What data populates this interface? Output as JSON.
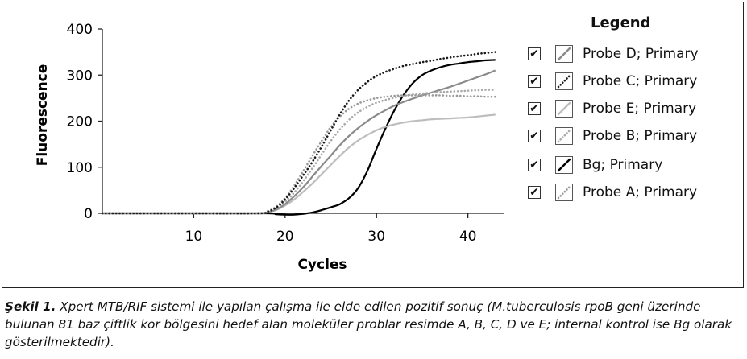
{
  "caption": {
    "label": "Şekil 1.",
    "text": " Xpert MTB/RIF sistemi ile yapılan çalışma ile elde edilen pozitif sonuç (M.tuberculosis rpoB geni üzerinde bulunan 81 baz çiftlik kor bölgesini hedef alan moleküler problar resimde A, B, C, D ve E; internal kontrol ise Bg olarak gösterilmektedir)."
  },
  "legend": {
    "title": "Legend",
    "checkbox_glyph": "✔"
  },
  "chart_data": {
    "type": "line",
    "title": "",
    "xlabel": "Cycles",
    "ylabel": "Fluorescence",
    "xlim": [
      0,
      44
    ],
    "ylim": [
      0,
      400
    ],
    "xticks": [
      10,
      20,
      30,
      40
    ],
    "yticks": [
      0,
      100,
      200,
      300,
      400
    ],
    "grid": false,
    "legend_position": "right",
    "series": [
      {
        "name": "Probe D; Primary",
        "color": "#8a8a8a",
        "dash": "",
        "x": [
          0,
          10,
          17,
          18,
          19,
          20,
          21,
          22,
          23,
          24,
          25,
          26,
          27,
          28,
          29,
          30,
          31,
          32,
          33,
          34,
          35,
          36,
          37,
          38,
          39,
          40,
          41,
          42,
          43
        ],
        "y": [
          0,
          0,
          0,
          2,
          8,
          20,
          37,
          57,
          80,
          103,
          125,
          148,
          168,
          185,
          200,
          213,
          224,
          234,
          242,
          249,
          256,
          262,
          268,
          274,
          281,
          288,
          295,
          302,
          310
        ]
      },
      {
        "name": "Probe C; Primary",
        "color": "#1a1a1a",
        "dash": "dotted",
        "x": [
          0,
          10,
          17,
          18,
          19,
          20,
          21,
          22,
          23,
          24,
          25,
          26,
          27,
          28,
          29,
          30,
          31,
          32,
          33,
          34,
          35,
          36,
          37,
          38,
          39,
          40,
          41,
          42,
          43
        ],
        "y": [
          0,
          0,
          0,
          3,
          12,
          30,
          55,
          83,
          112,
          145,
          180,
          215,
          245,
          268,
          285,
          298,
          307,
          314,
          320,
          324,
          328,
          331,
          335,
          338,
          341,
          343,
          346,
          348,
          350
        ]
      },
      {
        "name": "Probe E; Primary",
        "color": "#bdbdbd",
        "dash": "",
        "x": [
          0,
          10,
          17,
          18,
          19,
          20,
          21,
          22,
          23,
          24,
          25,
          26,
          27,
          28,
          29,
          30,
          31,
          32,
          33,
          34,
          35,
          36,
          37,
          38,
          39,
          40,
          41,
          42,
          43
        ],
        "y": [
          0,
          0,
          0,
          2,
          7,
          17,
          30,
          47,
          65,
          85,
          105,
          125,
          143,
          158,
          170,
          180,
          188,
          193,
          197,
          200,
          202,
          204,
          205,
          206,
          207,
          208,
          210,
          212,
          214
        ]
      },
      {
        "name": "Probe B; Primary",
        "color": "#a9a9a9",
        "dash": "dotted",
        "x": [
          0,
          10,
          17,
          18,
          19,
          20,
          21,
          22,
          23,
          24,
          25,
          26,
          27,
          28,
          29,
          30,
          31,
          32,
          33,
          34,
          35,
          36,
          37,
          38,
          39,
          40,
          41,
          42,
          43
        ],
        "y": [
          0,
          0,
          0,
          3,
          10,
          25,
          45,
          70,
          98,
          128,
          157,
          182,
          203,
          219,
          231,
          240,
          246,
          251,
          255,
          258,
          260,
          262,
          263,
          264,
          265,
          266,
          267,
          268,
          268
        ]
      },
      {
        "name": "Bg; Primary",
        "color": "#000000",
        "dash": "",
        "x": [
          0,
          10,
          18,
          19,
          20,
          21,
          22,
          23,
          24,
          25,
          26,
          27,
          28,
          29,
          30,
          31,
          32,
          33,
          34,
          35,
          36,
          37,
          38,
          39,
          40,
          41,
          42,
          43
        ],
        "y": [
          0,
          0,
          0,
          -2,
          -3,
          -3,
          -1,
          2,
          7,
          13,
          20,
          33,
          55,
          92,
          140,
          185,
          225,
          258,
          283,
          300,
          310,
          317,
          322,
          325,
          328,
          330,
          332,
          333
        ]
      },
      {
        "name": "Probe A; Primary",
        "color": "#9a9a9a",
        "dash": "dotted",
        "x": [
          0,
          10,
          17,
          18,
          19,
          20,
          21,
          22,
          23,
          24,
          25,
          26,
          27,
          28,
          29,
          30,
          31,
          32,
          33,
          34,
          35,
          36,
          37,
          38,
          39,
          40,
          41,
          42,
          43
        ],
        "y": [
          0,
          0,
          0,
          4,
          14,
          33,
          60,
          92,
          125,
          157,
          187,
          210,
          227,
          238,
          245,
          250,
          253,
          255,
          256,
          256,
          256,
          256,
          256,
          255,
          255,
          254,
          254,
          253,
          253
        ]
      }
    ]
  }
}
